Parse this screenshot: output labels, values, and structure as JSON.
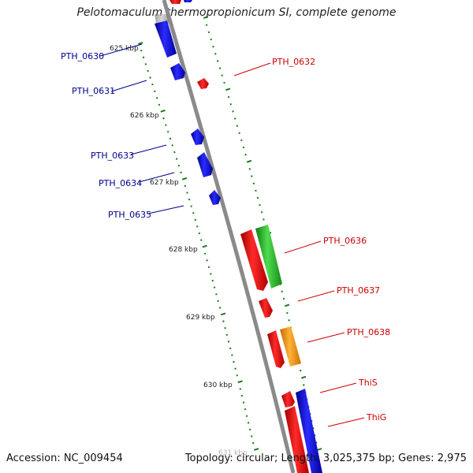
{
  "title": "Pelotomaculum thermopropionicum SI, complete genome",
  "footer": {
    "accession": "Accession: NC_009454",
    "summary": "Topology: circular; Length: 3,025,375 bp; Genes: 2,975"
  },
  "colors": {
    "forward_gene": "#0000ee",
    "reverse_gene": "#ee0000",
    "label_forward": "#00008b",
    "label_reverse": "#cc0000",
    "tick": "#1a7a1a",
    "backbone": "#888888",
    "cds_green": "#22aa22",
    "cds_orange": "#ff9900"
  },
  "scale_labels": [
    "625 kbp",
    "626 kbp",
    "627 kbp",
    "628 kbp",
    "629 kbp",
    "630 kbp",
    "631 kbp"
  ],
  "genes_left": [
    {
      "label": "PTH_0630",
      "icon": "blue-gene-arrow"
    },
    {
      "label": "PTH_0631",
      "icon": "blue-gene-arrow"
    },
    {
      "label": "PTH_0633",
      "icon": "blue-gene-arrow"
    },
    {
      "label": "PTH_0634",
      "icon": "blue-gene-arrow"
    },
    {
      "label": "PTH_0635",
      "icon": "blue-gene-arrow"
    }
  ],
  "genes_right": [
    {
      "label": "PTH_0632",
      "icon": "red-gene-arrow"
    },
    {
      "label": "PTH_0636",
      "icon": "red-gene-arrow"
    },
    {
      "label": "PTH_0637",
      "icon": "red-gene-arrow"
    },
    {
      "label": "PTH_0638",
      "icon": "red-gene-arrow"
    },
    {
      "label": "ThiS",
      "icon": "red-gene-arrow"
    },
    {
      "label": "ThiG",
      "icon": "red-gene-arrow"
    }
  ]
}
